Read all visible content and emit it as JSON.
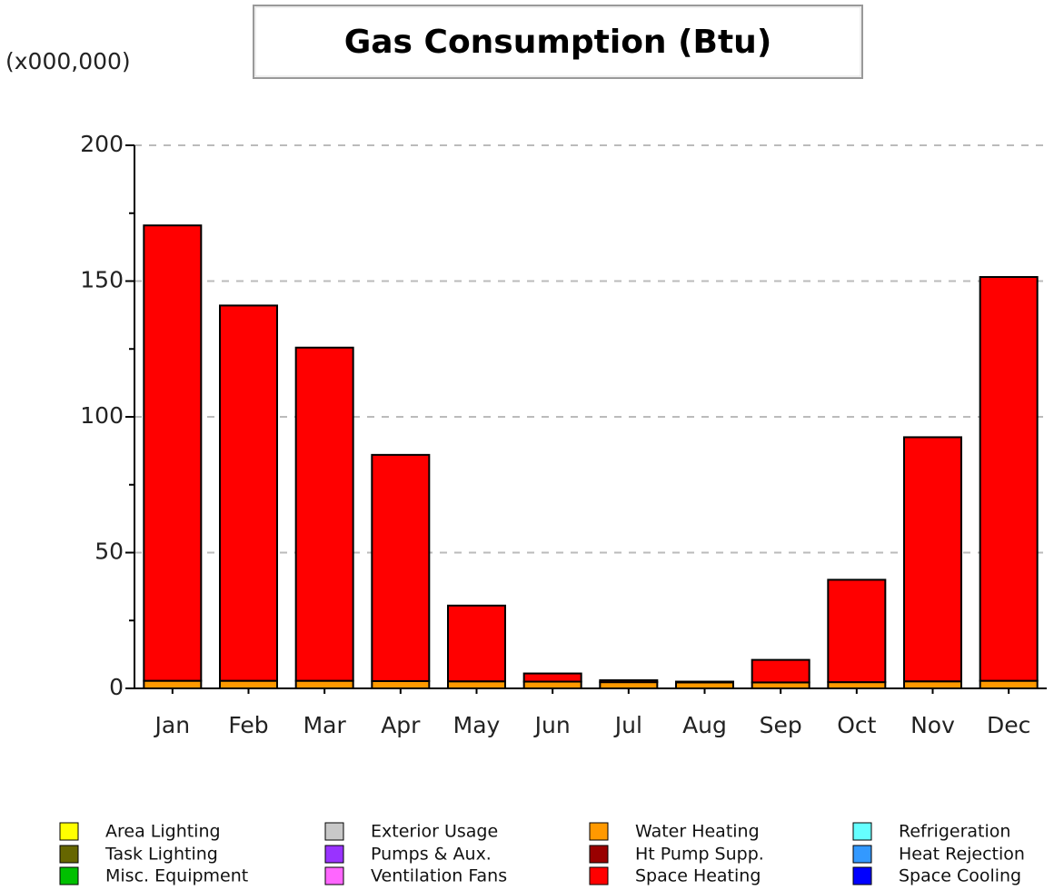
{
  "chart_data": {
    "type": "stacked_bar",
    "title": "Gas Consumption (Btu)",
    "unit_label": "(x000,000)",
    "categories": [
      "Jan",
      "Feb",
      "Mar",
      "Apr",
      "May",
      "Jun",
      "Jul",
      "Aug",
      "Sep",
      "Oct",
      "Nov",
      "Dec"
    ],
    "series": [
      {
        "name": "Area Lighting",
        "color": "#ffff00",
        "values": [
          0,
          0,
          0,
          0,
          0,
          0,
          0,
          0,
          0,
          0,
          0,
          0
        ]
      },
      {
        "name": "Task Lighting",
        "color": "#666600",
        "values": [
          0,
          0,
          0,
          0,
          0,
          0,
          0,
          0,
          0,
          0,
          0,
          0
        ]
      },
      {
        "name": "Misc. Equipment",
        "color": "#00c000",
        "values": [
          0,
          0,
          0,
          0,
          0,
          0,
          0,
          0,
          0,
          0,
          0,
          0
        ]
      },
      {
        "name": "Exterior Usage",
        "color": "#c8c8c8",
        "values": [
          0,
          0,
          0,
          0,
          0,
          0,
          0,
          0,
          0,
          0,
          0,
          0
        ]
      },
      {
        "name": "Pumps & Aux.",
        "color": "#9933ff",
        "values": [
          0,
          0,
          0,
          0,
          0,
          0,
          0,
          0,
          0,
          0,
          0,
          0
        ]
      },
      {
        "name": "Ventilation Fans",
        "color": "#ff66ff",
        "values": [
          0,
          0,
          0,
          0,
          0,
          0,
          0,
          0,
          0,
          0,
          0,
          0
        ]
      },
      {
        "name": "Water Heating",
        "color": "#ff9900",
        "values": [
          2.8,
          2.8,
          2.8,
          2.7,
          2.6,
          2.5,
          2.3,
          2.2,
          2.2,
          2.3,
          2.6,
          2.8
        ]
      },
      {
        "name": "Ht Pump Supp.",
        "color": "#990000",
        "values": [
          0,
          0,
          0,
          0,
          0,
          0,
          0,
          0,
          0,
          0,
          0,
          0
        ]
      },
      {
        "name": "Space Heating",
        "color": "#ff0000",
        "values": [
          167.7,
          138.2,
          122.7,
          83.3,
          27.9,
          3.0,
          0.7,
          0.3,
          8.3,
          37.7,
          89.9,
          148.7
        ]
      },
      {
        "name": "Refrigeration",
        "color": "#66ffff",
        "values": [
          0,
          0,
          0,
          0,
          0,
          0,
          0,
          0,
          0,
          0,
          0,
          0
        ]
      },
      {
        "name": "Heat Rejection",
        "color": "#3399ff",
        "values": [
          0,
          0,
          0,
          0,
          0,
          0,
          0,
          0,
          0,
          0,
          0,
          0
        ]
      },
      {
        "name": "Space Cooling",
        "color": "#0000ff",
        "values": [
          0,
          0,
          0,
          0,
          0,
          0,
          0,
          0,
          0,
          0,
          0,
          0
        ]
      }
    ],
    "ylim": [
      0,
      200
    ],
    "yticks": [
      0,
      50,
      100,
      150,
      200
    ],
    "yminorticks": [
      25,
      75,
      125,
      175
    ],
    "grid": true
  }
}
